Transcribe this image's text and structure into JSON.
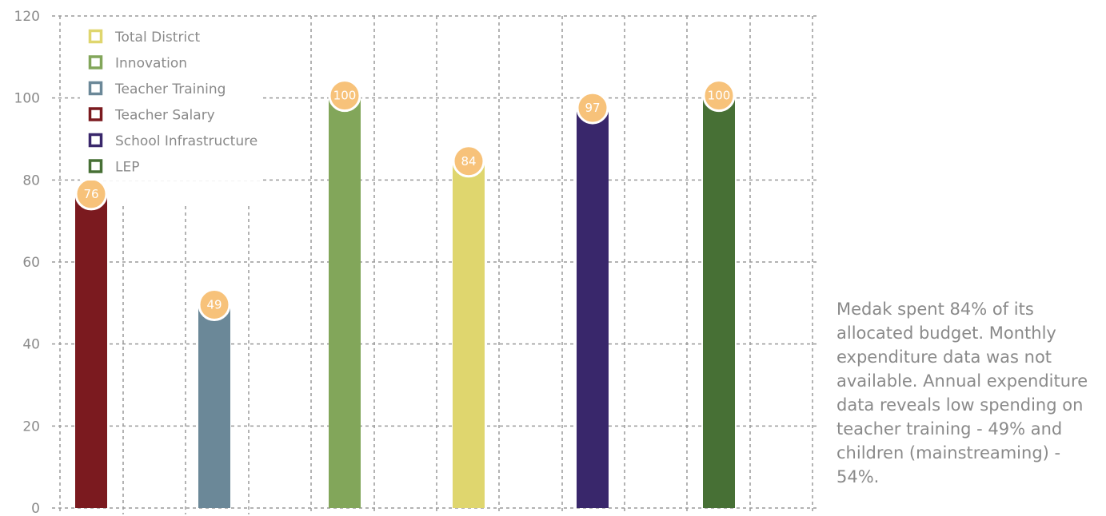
{
  "chart_data": {
    "type": "bar",
    "title": "",
    "xlabel": "",
    "ylabel": "",
    "ylim": [
      0,
      120
    ],
    "yticks": [
      0,
      20,
      40,
      60,
      80,
      100,
      120
    ],
    "grid": true,
    "legend_position": "top-left",
    "bars": [
      {
        "category": "Teacher Salary",
        "value": 76,
        "label": "76",
        "color": "#7b1a1f"
      },
      {
        "category": "Teacher Training",
        "value": 49,
        "label": "49",
        "color": "#6b8898"
      },
      {
        "category": "Innovation",
        "value": 100,
        "label": "100",
        "color": "#82a65a"
      },
      {
        "category": "Total District",
        "value": 84,
        "label": "84",
        "color": "#dfd66e"
      },
      {
        "category": "School Infrastructure",
        "value": 97,
        "label": "97",
        "color": "#39276b"
      },
      {
        "category": "LEP",
        "value": 100,
        "label": "100",
        "color": "#477035"
      }
    ],
    "legend": [
      {
        "label": "Total District",
        "color": "#dfd66e"
      },
      {
        "label": "Innovation",
        "color": "#82a65a"
      },
      {
        "label": "Teacher Training",
        "color": "#6b8898"
      },
      {
        "label": "Teacher Salary",
        "color": "#7b1a1f"
      },
      {
        "label": "School Infrastructure",
        "color": "#39276b"
      },
      {
        "label": "LEP",
        "color": "#477035"
      }
    ],
    "label_bubble_color": "#f7c27a"
  },
  "annotation": "Medak spent  84% of its allocated budget. Monthly expenditure data was not available. Annual expenditure data reveals low spending on teacher training - 49% and children (mainstreaming) - 54%."
}
